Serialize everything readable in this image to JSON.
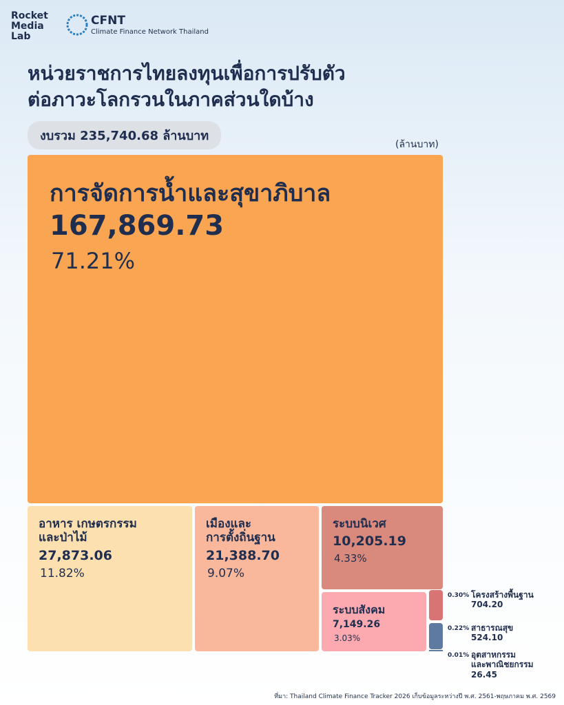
{
  "header": {
    "brand_lines": [
      "Rocket",
      "Media",
      "Lab"
    ],
    "partner": "CFNT",
    "partner_full": "Climate Finance Network Thailand"
  },
  "chart_data": {
    "type": "treemap",
    "title_lines": [
      "หน่วยราชการไทยลงทุนเพื่อการปรับตัว",
      "ต่อภาวะโลกรวนในภาคส่วนใดบ้าง"
    ],
    "subtitle": "งบรวม 235,740.68 ล้านบาท",
    "unit": "(ล้านบาท)",
    "categories": [
      "การจัดการน้ำและสุขาภิบาล",
      "อาหาร เกษตรกรรม\nและป่าไม้",
      "เมืองและ\nการตั้งถิ่นฐาน",
      "ระบบนิเวศ",
      "ระบบสังคม",
      "โครงสร้างพื้นฐาน",
      "สาธารณสุข",
      "อุตสาหกรรม\nและพาณิชยกรรม"
    ],
    "values": [
      167869.73,
      27873.06,
      21388.7,
      10205.19,
      7149.26,
      704.2,
      524.1,
      26.45
    ],
    "value_labels": [
      "167,869.73",
      "27,873.06",
      "21,388.70",
      "10,205.19",
      "7,149.26",
      "704.20",
      "524.10",
      "26.45"
    ],
    "shares": [
      71.21,
      11.82,
      9.07,
      4.33,
      3.03,
      0.3,
      0.22,
      0.01
    ],
    "share_labels": [
      "71.21%",
      "11.82%",
      "9.07%",
      "4.33%",
      "3.03%",
      "0.30%",
      "0.22%",
      "0.01%"
    ],
    "colors": [
      "#f9a552",
      "#fde0b0",
      "#f9b89c",
      "#d98a7c",
      "#fcaab0",
      "#d97474",
      "#5e7aa0",
      "#5e7aa0"
    ],
    "source": "ที่มา: Thailand Climate Finance Tracker 2026  เก็บข้อมูลระหว่างปี พ.ศ. 2561-พฤษภาคม พ.ศ. 2569"
  }
}
